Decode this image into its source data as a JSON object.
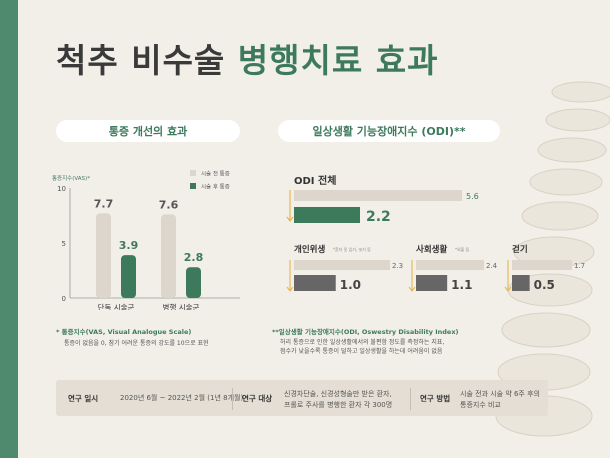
{
  "title": {
    "part1": "척추 비수술",
    "part2": "병행치료 효과"
  },
  "left_header": "통증 개선의 효과",
  "right_header": "일상생활 기능장애지수 (ODI)**",
  "chart_data": [
    {
      "type": "bar",
      "ylabel": "통증지수(VAS)*",
      "ylim": [
        0,
        10
      ],
      "yticks": [
        "0",
        "5",
        "10"
      ],
      "categories": [
        "단독 시술군",
        "병행 시술군"
      ],
      "series": [
        {
          "name": "시술 전 통증",
          "values": [
            7.7,
            7.6
          ],
          "labels": [
            "7.7",
            "7.6"
          ],
          "color": "#dcd6cc"
        },
        {
          "name": "시술 후 통증",
          "values": [
            3.9,
            2.8
          ],
          "labels": [
            "3.9",
            "2.8"
          ],
          "color": "#3d7a5c"
        }
      ]
    },
    {
      "type": "bar",
      "orientation": "horizontal",
      "groups": [
        {
          "label": "ODI 전체",
          "sub": "",
          "before": 5.6,
          "after": 2.2,
          "before_label": "5.6",
          "after_label": "2.2"
        },
        {
          "label": "개인위생",
          "sub": "*혼자 옷 입기, 씻기 등",
          "before": 2.3,
          "after": 1.0,
          "before_label": "2.3",
          "after_label": "1.0"
        },
        {
          "label": "사회생활",
          "sub": "*외출 등",
          "before": 2.4,
          "after": 1.1,
          "before_label": "2.4",
          "after_label": "1.1"
        },
        {
          "label": "걷기",
          "sub": "",
          "before": 1.7,
          "after": 0.5,
          "before_label": "1.7",
          "after_label": "0.5"
        }
      ],
      "colors": {
        "before": "#dcd6cc",
        "after": "#3d7a5c",
        "after_small": "#666666",
        "accent": "#e8b64a"
      }
    }
  ],
  "notes": {
    "vas_title": "* 통증지수(VAS, Visual Analogue Scale)",
    "vas_text": "통증이 없음을 0, 참기 어려운 통증의 강도를 10으로 표현",
    "odi_title": "**일상생활 기능장애지수(ODI, Oswestry Disability Index)",
    "odi_line1": "허리 통증으로 인한 일상생활에서의 불편함 정도를 측정하는 지표,",
    "odi_line2": "점수가 낮을수록 통증이 덜하고 일상생활을 하는데 어려움이 없음"
  },
  "info": {
    "period_label": "연구 일시",
    "period_value": "2020년 6월 ~ 2022년 2월 (1년 8개월)",
    "subject_label": "연구 대상",
    "subject_line1": "신경차단술, 신경성형술만 받은 환자,",
    "subject_line2": "프롤로 주사를 병행한 환자 각 300명",
    "method_label": "연구 방법",
    "method_line1": "시술 전과 시술 약 6주 후의",
    "method_line2": "통증지수 비교"
  }
}
